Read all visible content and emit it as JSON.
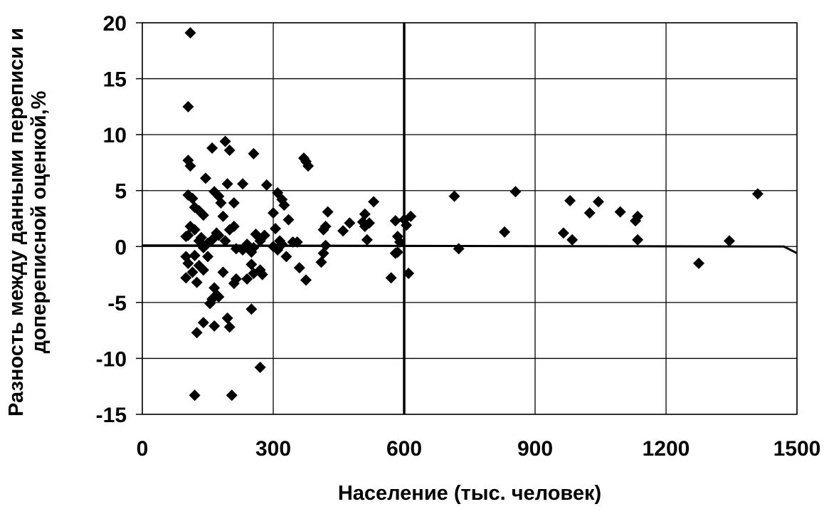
{
  "chart_data": {
    "type": "scatter",
    "title": "",
    "xlabel": "Население (тыс. человек)",
    "ylabel_lines": [
      "Разность между данными переписи и",
      "допереписной оценкой,%"
    ],
    "xlim": [
      0,
      1500
    ],
    "ylim": [
      -15,
      20
    ],
    "x_ticks": [
      0,
      300,
      600,
      900,
      1200,
      1500
    ],
    "y_ticks": [
      -15,
      -10,
      -5,
      0,
      5,
      10,
      15,
      20
    ],
    "x_tick_labels": [
      "0",
      "300",
      "600",
      "900",
      "1200",
      "1500"
    ],
    "y_tick_labels": [
      "-15",
      "-10",
      "-5",
      "0",
      "5",
      "10",
      "15",
      "20"
    ],
    "grid": true,
    "marker": "diamond",
    "marker_color": "#000000",
    "vertical_line_x": 600,
    "trend_line": [
      [
        0,
        0.1
      ],
      [
        1470,
        0.0
      ],
      [
        1500,
        -0.6
      ]
    ],
    "points": [
      [
        110,
        19.1
      ],
      [
        105,
        12.5
      ],
      [
        105,
        7.7
      ],
      [
        110,
        7.2
      ],
      [
        105,
        4.6
      ],
      [
        115,
        4.3
      ],
      [
        120,
        3.5
      ],
      [
        130,
        3.2
      ],
      [
        140,
        2.8
      ],
      [
        145,
        6.1
      ],
      [
        160,
        8.8
      ],
      [
        165,
        4.9
      ],
      [
        175,
        4.5
      ],
      [
        180,
        3.9
      ],
      [
        190,
        9.4
      ],
      [
        195,
        5.6
      ],
      [
        200,
        8.6
      ],
      [
        210,
        3.9
      ],
      [
        230,
        5.6
      ],
      [
        255,
        8.3
      ],
      [
        110,
        1.8
      ],
      [
        120,
        1.5
      ],
      [
        105,
        1.0
      ],
      [
        100,
        0.9
      ],
      [
        130,
        0.5
      ],
      [
        135,
        0.8
      ],
      [
        140,
        -0.1
      ],
      [
        150,
        0.3
      ],
      [
        160,
        0.6
      ],
      [
        170,
        1.2
      ],
      [
        175,
        1.0
      ],
      [
        185,
        2.7
      ],
      [
        190,
        0.5
      ],
      [
        200,
        1.5
      ],
      [
        210,
        1.8
      ],
      [
        215,
        -0.2
      ],
      [
        230,
        -0.3
      ],
      [
        240,
        0.2
      ],
      [
        245,
        -0.2
      ],
      [
        250,
        -0.5
      ],
      [
        255,
        -0.1
      ],
      [
        260,
        1.1
      ],
      [
        270,
        0.5
      ],
      [
        280,
        1.0
      ],
      [
        285,
        5.5
      ],
      [
        300,
        3.0
      ],
      [
        310,
        4.8
      ],
      [
        320,
        4.2
      ],
      [
        325,
        3.7
      ],
      [
        305,
        1.6
      ],
      [
        315,
        0.5
      ],
      [
        320,
        0.2
      ],
      [
        335,
        2.4
      ],
      [
        345,
        0.4
      ],
      [
        355,
        0.4
      ],
      [
        370,
        7.9
      ],
      [
        375,
        7.6
      ],
      [
        380,
        7.2
      ],
      [
        415,
        1.5
      ],
      [
        420,
        1.8
      ],
      [
        425,
        3.1
      ],
      [
        420,
        0.1
      ],
      [
        460,
        1.4
      ],
      [
        475,
        2.1
      ],
      [
        505,
        2.2
      ],
      [
        510,
        1.8
      ],
      [
        510,
        2.9
      ],
      [
        515,
        0.6
      ],
      [
        520,
        2.1
      ],
      [
        530,
        4.0
      ],
      [
        570,
        -2.8
      ],
      [
        580,
        2.3
      ],
      [
        585,
        0.9
      ],
      [
        590,
        0.4
      ],
      [
        585,
        -0.5
      ],
      [
        600,
        2.4
      ],
      [
        605,
        1.9
      ],
      [
        615,
        2.7
      ],
      [
        610,
        -2.4
      ],
      [
        715,
        4.5
      ],
      [
        725,
        -0.2
      ],
      [
        830,
        1.3
      ],
      [
        855,
        4.9
      ],
      [
        965,
        1.2
      ],
      [
        980,
        4.1
      ],
      [
        985,
        0.6
      ],
      [
        1025,
        3.0
      ],
      [
        1045,
        4.0
      ],
      [
        1095,
        3.1
      ],
      [
        1130,
        2.3
      ],
      [
        1135,
        2.7
      ],
      [
        1135,
        0.6
      ],
      [
        1275,
        -1.5
      ],
      [
        1345,
        0.5
      ],
      [
        1410,
        4.7
      ],
      [
        100,
        -0.9
      ],
      [
        105,
        -1.5
      ],
      [
        100,
        -2.8
      ],
      [
        115,
        -2.3
      ],
      [
        120,
        -0.8
      ],
      [
        125,
        -3.2
      ],
      [
        130,
        -1.7
      ],
      [
        140,
        -2.1
      ],
      [
        150,
        -0.9
      ],
      [
        155,
        -5.1
      ],
      [
        160,
        -4.7
      ],
      [
        165,
        -3.7
      ],
      [
        170,
        -4.3
      ],
      [
        175,
        -4.5
      ],
      [
        185,
        -2.3
      ],
      [
        195,
        -6.4
      ],
      [
        200,
        -7.2
      ],
      [
        165,
        -7.1
      ],
      [
        140,
        -6.8
      ],
      [
        125,
        -7.7
      ],
      [
        120,
        -13.3
      ],
      [
        205,
        -13.3
      ],
      [
        210,
        -3.3
      ],
      [
        215,
        -2.9
      ],
      [
        240,
        -2.9
      ],
      [
        250,
        -1.6
      ],
      [
        255,
        -2.4
      ],
      [
        250,
        -5.6
      ],
      [
        270,
        -10.8
      ],
      [
        270,
        -2.1
      ],
      [
        275,
        -2.5
      ],
      [
        300,
        0.0
      ],
      [
        310,
        -0.3
      ],
      [
        330,
        -0.9
      ],
      [
        360,
        -1.9
      ],
      [
        375,
        -3.0
      ],
      [
        410,
        -1.4
      ],
      [
        415,
        -0.6
      ],
      [
        580,
        -0.6
      ]
    ]
  }
}
